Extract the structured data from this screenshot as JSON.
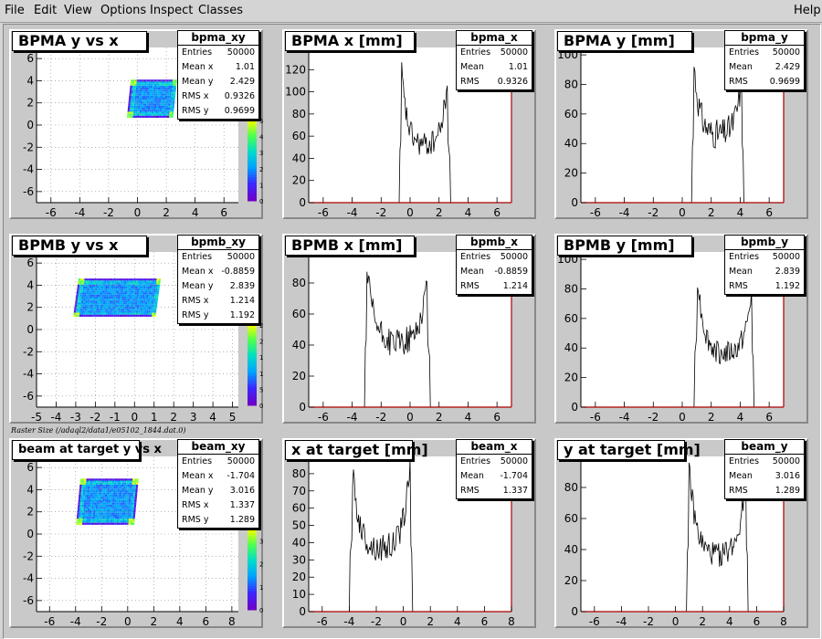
{
  "menu": {
    "items": [
      {
        "name": "file",
        "label": "File"
      },
      {
        "name": "edit",
        "label": "Edit"
      },
      {
        "name": "view",
        "label": "View"
      },
      {
        "name": "options",
        "label": "Options"
      },
      {
        "name": "inspect",
        "label": "Inspect"
      },
      {
        "name": "classes",
        "label": "Classes"
      }
    ],
    "help": "Help"
  },
  "raster_label": "Raster Size (/adaql2/data1/e05102_1844.dat.0)",
  "chart_data": [
    {
      "type": "heatmap",
      "title": "BPMA y vs x",
      "xlim": [
        -7,
        7
      ],
      "ylim": [
        -7,
        7
      ],
      "xticks": [
        "-6",
        "-4",
        "-2",
        "0",
        "2",
        "4",
        "6"
      ],
      "yticks": [
        "-6",
        "-4",
        "-2",
        "0",
        "2",
        "4",
        "6"
      ],
      "region": {
        "x": [
          -0.6,
          2.6
        ],
        "y": [
          0.8,
          4.1
        ]
      },
      "palette": {
        "ticks": [
          "0",
          "10",
          "20",
          "30",
          "40",
          "50"
        ],
        "max": 50
      },
      "stats": {
        "name": "bpma_xy",
        "rows": [
          [
            "Entries",
            "50000"
          ],
          [
            "Mean x",
            "1.01"
          ],
          [
            "Mean y",
            "2.429"
          ],
          [
            "RMS x",
            "0.9326"
          ],
          [
            "RMS y",
            "0.9699"
          ]
        ]
      }
    },
    {
      "type": "histogram",
      "title": "BPMA x [mm]",
      "xlim": [
        -7,
        7
      ],
      "ylim": [
        0,
        140
      ],
      "xticks": [
        "-6",
        "-4",
        "-2",
        "0",
        "2",
        "4",
        "6"
      ],
      "yticks": [
        "0",
        "20",
        "40",
        "60",
        "80",
        "100",
        "120",
        "140"
      ],
      "shape": {
        "lo": -0.6,
        "hi": 2.6,
        "peak_lo": 120,
        "peak_hi": 115,
        "mid": 50
      },
      "stats": {
        "name": "bpma_x",
        "rows": [
          [
            "Entries",
            "50000"
          ],
          [
            "Mean",
            "1.01"
          ],
          [
            "RMS",
            "0.9326"
          ]
        ]
      }
    },
    {
      "type": "histogram",
      "title": "BPMA y [mm]",
      "xlim": [
        -7,
        7
      ],
      "ylim": [
        0,
        105
      ],
      "xticks": [
        "-6",
        "-4",
        "-2",
        "0",
        "2",
        "4",
        "6"
      ],
      "yticks": [
        "0",
        "20",
        "40",
        "60",
        "80",
        "100"
      ],
      "shape": {
        "lo": 0.8,
        "hi": 4.1,
        "peak_lo": 95,
        "peak_hi": 85,
        "mid": 45
      },
      "stats": {
        "name": "bpma_y",
        "rows": [
          [
            "Entries",
            "50000"
          ],
          [
            "Mean",
            "2.429"
          ],
          [
            "RMS",
            "0.9699"
          ]
        ]
      }
    },
    {
      "type": "heatmap",
      "title": "BPMB y vs x",
      "xlim": [
        -5,
        5.3
      ],
      "ylim": [
        -7,
        7
      ],
      "xticks": [
        "-5",
        "-4",
        "-3",
        "-2",
        "-1",
        "0",
        "1",
        "2",
        "3",
        "4",
        "5"
      ],
      "yticks": [
        "-6",
        "-4",
        "-2",
        "0",
        "2",
        "4",
        "6"
      ],
      "region": {
        "x": [
          -3.0,
          1.2
        ],
        "y": [
          1.2,
          4.6
        ]
      },
      "palette": {
        "ticks": [
          "0",
          "5",
          "10",
          "15",
          "20",
          "25"
        ],
        "max": 25
      },
      "stats": {
        "name": "bpmb_xy",
        "rows": [
          [
            "Entries",
            "50000"
          ],
          [
            "Mean x",
            "-0.8859"
          ],
          [
            "Mean y",
            "2.839"
          ],
          [
            "RMS x",
            "1.214"
          ],
          [
            "RMS y",
            "1.192"
          ]
        ]
      }
    },
    {
      "type": "histogram",
      "title": "BPMB x [mm]",
      "xlim": [
        -7,
        7
      ],
      "ylim": [
        0,
        100
      ],
      "xticks": [
        "-6",
        "-4",
        "-2",
        "0",
        "2",
        "4",
        "6"
      ],
      "yticks": [
        "0",
        "20",
        "40",
        "60",
        "80",
        "100"
      ],
      "shape": {
        "lo": -3.0,
        "hi": 1.2,
        "peak_lo": 90,
        "peak_hi": 85,
        "mid": 40
      },
      "stats": {
        "name": "bpmb_x",
        "rows": [
          [
            "Entries",
            "50000"
          ],
          [
            "Mean",
            "-0.8859"
          ],
          [
            "RMS",
            "1.214"
          ]
        ]
      }
    },
    {
      "type": "histogram",
      "title": "BPMB y [mm]",
      "xlim": [
        -7,
        7
      ],
      "ylim": [
        0,
        105
      ],
      "xticks": [
        "-6",
        "-4",
        "-2",
        "0",
        "2",
        "4",
        "6"
      ],
      "yticks": [
        "0",
        "20",
        "40",
        "60",
        "80",
        "100"
      ],
      "shape": {
        "lo": 1.0,
        "hi": 4.8,
        "peak_lo": 95,
        "peak_hi": 80,
        "mid": 35
      },
      "stats": {
        "name": "bpmb_y",
        "rows": [
          [
            "Entries",
            "50000"
          ],
          [
            "Mean",
            "2.839"
          ],
          [
            "RMS",
            "1.192"
          ]
        ]
      }
    },
    {
      "type": "heatmap",
      "title": "beam at target y vs x",
      "xlim": [
        -7,
        8.5
      ],
      "ylim": [
        -7,
        7
      ],
      "xticks": [
        "-6",
        "-4",
        "-2",
        "0",
        "2",
        "4",
        "6",
        "8"
      ],
      "yticks": [
        "-6",
        "-4",
        "-2",
        "0",
        "2",
        "4",
        "6"
      ],
      "region": {
        "x": [
          -3.8,
          0.6
        ],
        "y": [
          1.0,
          5.0
        ]
      },
      "palette": {
        "ticks": [
          "0",
          "10",
          "20",
          "30"
        ],
        "max": 35
      },
      "stats": {
        "name": "beam_xy",
        "rows": [
          [
            "Entries",
            "50000"
          ],
          [
            "Mean x",
            "-1.704"
          ],
          [
            "Mean y",
            "3.016"
          ],
          [
            "RMS x",
            "1.337"
          ],
          [
            "RMS y",
            "1.289"
          ]
        ]
      }
    },
    {
      "type": "histogram",
      "title": "x at target [mm]",
      "xlim": [
        -7,
        8
      ],
      "ylim": [
        0,
        90
      ],
      "xticks": [
        "-6",
        "-4",
        "-2",
        "0",
        "2",
        "4",
        "6",
        "8"
      ],
      "yticks": [
        "0",
        "10",
        "20",
        "30",
        "40",
        "50",
        "60",
        "70",
        "80",
        "90"
      ],
      "shape": {
        "lo": -3.8,
        "hi": 0.5,
        "peak_lo": 85,
        "peak_hi": 85,
        "mid": 35
      },
      "stats": {
        "name": "beam_x",
        "rows": [
          [
            "Entries",
            "50000"
          ],
          [
            "Mean",
            "-1.704"
          ],
          [
            "RMS",
            "1.337"
          ]
        ]
      }
    },
    {
      "type": "histogram",
      "title": "y at target [mm]",
      "xlim": [
        -7,
        8
      ],
      "ylim": [
        0,
        100
      ],
      "xticks": [
        "-6",
        "-4",
        "-2",
        "0",
        "2",
        "4",
        "6",
        "8"
      ],
      "yticks": [
        "0",
        "20",
        "40",
        "60",
        "80",
        "100"
      ],
      "shape": {
        "lo": 1.0,
        "hi": 5.2,
        "peak_lo": 95,
        "peak_hi": 90,
        "mid": 35
      },
      "stats": {
        "name": "beam_y",
        "rows": [
          [
            "Entries",
            "50000"
          ],
          [
            "Mean",
            "3.016"
          ],
          [
            "RMS",
            "1.289"
          ]
        ]
      }
    }
  ]
}
